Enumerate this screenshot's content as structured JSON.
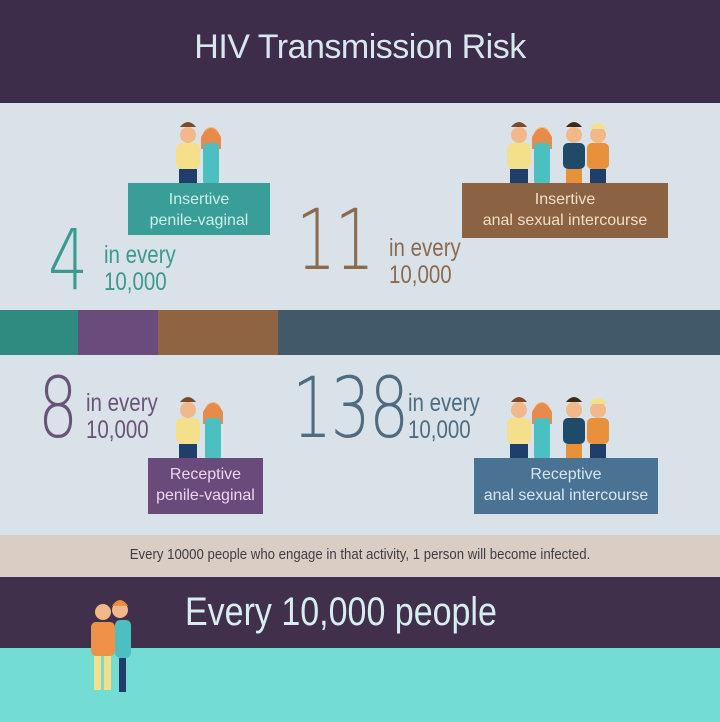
{
  "title": "HIV Transmission Risk",
  "stats": [
    {
      "number": "4",
      "line1": "in every",
      "line2": "10,000",
      "label1": "Insertive",
      "label2": "penile-vaginal",
      "color": "#3b9990",
      "banner_color": "#3a9e98"
    },
    {
      "number": "11",
      "line1": "in every",
      "line2": "10,000",
      "label1": "Insertive",
      "label2": "anal sexual intercourse",
      "color": "#8c6a4e",
      "banner_color": "#8b6343"
    },
    {
      "number": "8",
      "line1": "in every",
      "line2": "10,000",
      "label1": "Receptive",
      "label2": "penile-vaginal",
      "color": "#6a5378",
      "banner_color": "#6a4a7a"
    },
    {
      "number": "138",
      "line1": "in every",
      "line2": "10,000",
      "label1": "Receptive",
      "label2": "anal sexual intercourse",
      "color": "#4f6b80",
      "banner_color": "#4a7293"
    }
  ],
  "bar_colors": [
    "#2f8a80",
    "#6b4a7c",
    "#8e6443",
    "#42596a"
  ],
  "note": "Every 10000 people who engage in that activity, 1 person will become infected.",
  "footer": "Every 10,000 people",
  "colors": {
    "title_band": "#3e2c4b",
    "background": "#d9e2e8",
    "note_band": "#dacec4",
    "footer_band": "#41304b",
    "teal_band": "#74ddd3"
  }
}
